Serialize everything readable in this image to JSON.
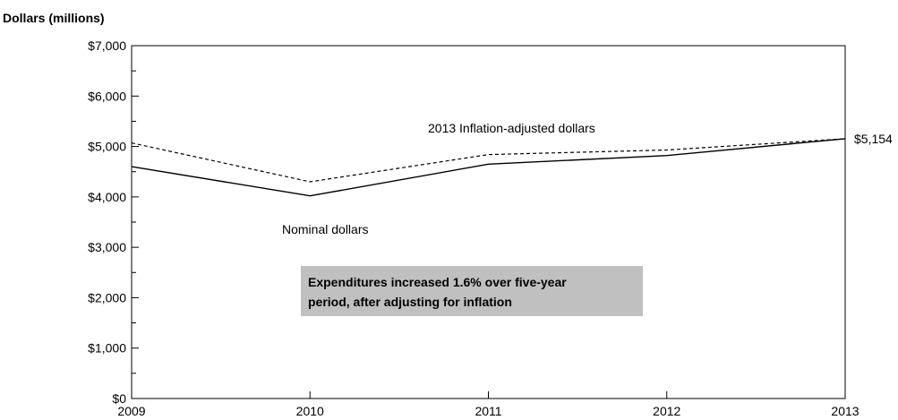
{
  "chart_data": {
    "type": "line",
    "ylabel": "Dollars (millions)",
    "x": [
      "2009",
      "2010",
      "2011",
      "2012",
      "2013"
    ],
    "ylim": [
      0,
      7000
    ],
    "y_ticks": [
      "$0",
      "$1,000",
      "$2,000",
      "$3,000",
      "$4,000",
      "$5,000",
      "$6,000",
      "$7,000"
    ],
    "series": [
      {
        "name": "Nominal dollars",
        "values": [
          4600,
          4020,
          4650,
          4820,
          5154
        ],
        "style": "solid",
        "color": "#000000"
      },
      {
        "name": "2013 Inflation-adjusted dollars",
        "values": [
          5070,
          4300,
          4840,
          4930,
          5154
        ],
        "style": "dashed",
        "color": "#000000"
      }
    ],
    "end_label": "$5,154",
    "note": {
      "lines": [
        "Expenditures increased 1.6% over five-year",
        "period, after adjusting for inflation"
      ],
      "background": "#c0c0c0"
    },
    "grid": false
  }
}
